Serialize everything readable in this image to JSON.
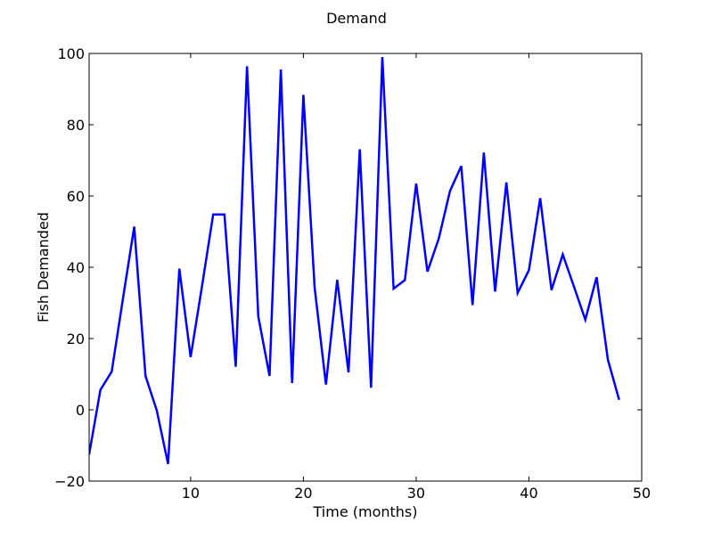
{
  "chart_data": {
    "type": "line",
    "title": "Demand",
    "xlabel": "Time (months)",
    "ylabel": "Fish Demanded",
    "xlim": [
      1,
      50
    ],
    "ylim": [
      -20,
      100
    ],
    "xticks": [
      10,
      20,
      30,
      40,
      50
    ],
    "yticks": [
      -20,
      0,
      20,
      40,
      60,
      80,
      100
    ],
    "grid": false,
    "series": [
      {
        "color": "#0000ff",
        "x": [
          1,
          2,
          3,
          4,
          5,
          6,
          7,
          8,
          9,
          10,
          11,
          12,
          13,
          14,
          15,
          16,
          17,
          18,
          19,
          20,
          21,
          22,
          23,
          24,
          25,
          26,
          27,
          28,
          29,
          30,
          31,
          32,
          33,
          34,
          35,
          36,
          37,
          38,
          39,
          40,
          41,
          42,
          43,
          44,
          45,
          46,
          47,
          48
        ],
        "y": [
          -12.5,
          5.6,
          10.7,
          31.2,
          51.4,
          9.5,
          -0.2,
          -15.2,
          39.6,
          14.8,
          34.5,
          54.8,
          54.8,
          12.1,
          96.4,
          26.2,
          9.5,
          95.5,
          7.5,
          88.4,
          34.2,
          7.1,
          36.5,
          10.5,
          73.1,
          6.2,
          99.0,
          34.0,
          36.4,
          63.5,
          38.8,
          48.0,
          61.4,
          68.4,
          29.4,
          72.2,
          33.2,
          63.8,
          32.8,
          39.2,
          59.4,
          33.6,
          43.6,
          34.5,
          25.3,
          37.2,
          14.1,
          2.8
        ]
      }
    ]
  }
}
